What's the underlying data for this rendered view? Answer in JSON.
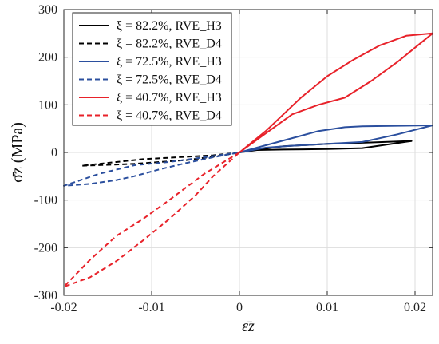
{
  "chart_data": {
    "type": "line",
    "xlabel": "ε̄z",
    "ylabel": "σ̄z (MPa)",
    "xlim": [
      -0.02,
      0.022
    ],
    "ylim": [
      -300,
      300
    ],
    "xticks": [
      -0.02,
      -0.01,
      0,
      0.01,
      0.02
    ],
    "xtick_labels": [
      "-0.02",
      "-0.01",
      "0",
      "0.01",
      "0.02"
    ],
    "yticks": [
      -300,
      -200,
      -100,
      0,
      100,
      200,
      300
    ],
    "ytick_labels": [
      "-300",
      "-200",
      "-100",
      "0",
      "100",
      "200",
      "300"
    ],
    "grid": true,
    "legend_position": "top-left",
    "series": [
      {
        "name": "ξ = 82.2%, RVE_H3",
        "color": "#000000",
        "dash": "solid",
        "points": [
          [
            0,
            0
          ],
          [
            0.002,
            5
          ],
          [
            0.005,
            6
          ],
          [
            0.01,
            7
          ],
          [
            0.014,
            9
          ],
          [
            0.0196,
            24
          ],
          [
            0.015,
            21
          ],
          [
            0.01,
            18
          ],
          [
            0.005,
            13
          ],
          [
            0.002,
            6
          ],
          [
            0,
            0
          ]
        ]
      },
      {
        "name": "ξ = 82.2%, RVE_D4",
        "color": "#000000",
        "dash": "dashed",
        "points": [
          [
            0,
            0
          ],
          [
            -0.003,
            -6
          ],
          [
            -0.007,
            -10
          ],
          [
            -0.011,
            -14
          ],
          [
            -0.015,
            -22
          ],
          [
            -0.018,
            -28
          ],
          [
            -0.015,
            -26
          ],
          [
            -0.012,
            -24
          ],
          [
            -0.009,
            -20
          ],
          [
            -0.006,
            -16
          ],
          [
            -0.003,
            -9
          ],
          [
            0,
            0
          ]
        ]
      },
      {
        "name": "ξ = 72.5%, RVE_H3",
        "color": "#2b4f9e",
        "dash": "solid",
        "points": [
          [
            0,
            0
          ],
          [
            0.003,
            10
          ],
          [
            0.006,
            14
          ],
          [
            0.01,
            18
          ],
          [
            0.014,
            22
          ],
          [
            0.018,
            38
          ],
          [
            0.022,
            57
          ],
          [
            0.018,
            56
          ],
          [
            0.014,
            55
          ],
          [
            0.012,
            53
          ],
          [
            0.009,
            45
          ],
          [
            0.006,
            30
          ],
          [
            0.003,
            15
          ],
          [
            0,
            0
          ]
        ]
      },
      {
        "name": "ξ = 72.5%, RVE_D4",
        "color": "#2b4f9e",
        "dash": "dashed",
        "points": [
          [
            0,
            0
          ],
          [
            -0.004,
            -10
          ],
          [
            -0.008,
            -20
          ],
          [
            -0.012,
            -27
          ],
          [
            -0.016,
            -45
          ],
          [
            -0.02,
            -70
          ],
          [
            -0.017,
            -66
          ],
          [
            -0.014,
            -58
          ],
          [
            -0.012,
            -50
          ],
          [
            -0.009,
            -35
          ],
          [
            -0.006,
            -22
          ],
          [
            -0.003,
            -10
          ],
          [
            0,
            0
          ]
        ]
      },
      {
        "name": "ξ = 40.7%, RVE_H3",
        "color": "#e8222a",
        "dash": "solid",
        "points": [
          [
            0,
            0
          ],
          [
            0.003,
            40
          ],
          [
            0.006,
            80
          ],
          [
            0.009,
            100
          ],
          [
            0.012,
            115
          ],
          [
            0.015,
            150
          ],
          [
            0.018,
            190
          ],
          [
            0.022,
            250
          ],
          [
            0.019,
            245
          ],
          [
            0.016,
            225
          ],
          [
            0.013,
            195
          ],
          [
            0.01,
            160
          ],
          [
            0.007,
            115
          ],
          [
            0.005,
            80
          ],
          [
            0.003,
            45
          ],
          [
            0,
            0
          ]
        ]
      },
      {
        "name": "ξ = 40.7%, RVE_D4",
        "color": "#e8222a",
        "dash": "dashed",
        "points": [
          [
            0,
            0
          ],
          [
            -0.004,
            -45
          ],
          [
            -0.008,
            -100
          ],
          [
            -0.011,
            -140
          ],
          [
            -0.014,
            -175
          ],
          [
            -0.017,
            -225
          ],
          [
            -0.02,
            -282
          ],
          [
            -0.017,
            -262
          ],
          [
            -0.014,
            -228
          ],
          [
            -0.011,
            -185
          ],
          [
            -0.008,
            -140
          ],
          [
            -0.005,
            -90
          ],
          [
            -0.003,
            -50
          ],
          [
            0,
            0
          ]
        ]
      }
    ]
  }
}
